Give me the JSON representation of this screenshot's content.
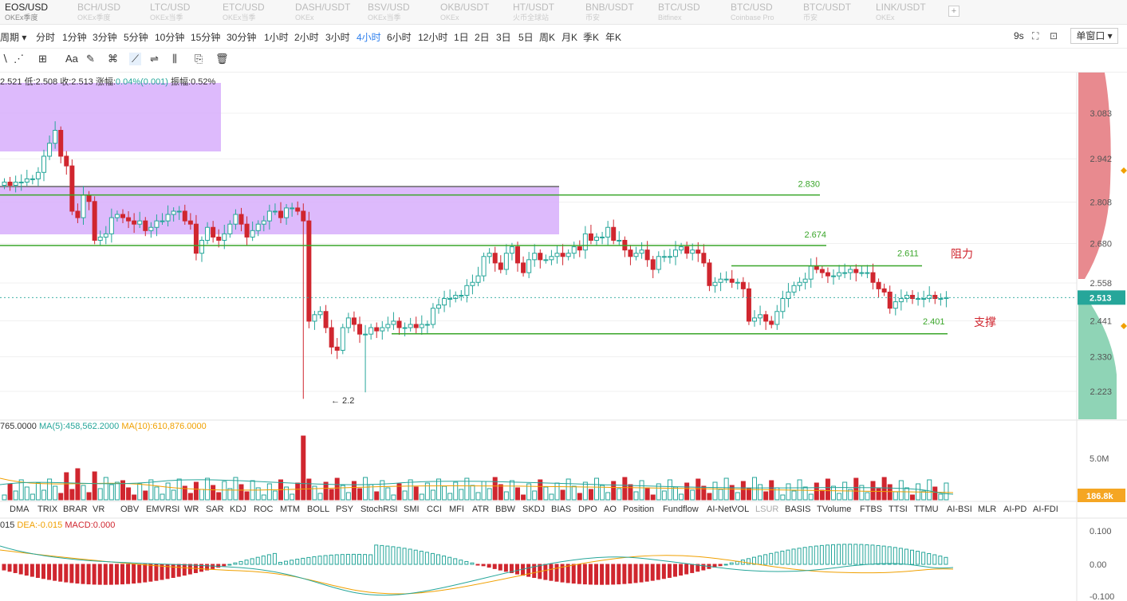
{
  "ticker_tabs": [
    {
      "symbol": "EOS/USD",
      "source": "OKEx季度",
      "active": true
    },
    {
      "symbol": "BCH/USD",
      "source": "OKEx季度",
      "active": false
    },
    {
      "symbol": "LTC/USD",
      "source": "OKEx当季",
      "active": false
    },
    {
      "symbol": "ETC/USD",
      "source": "OKEx当季",
      "active": false
    },
    {
      "symbol": "DASH/USDT",
      "source": "OKEx",
      "active": false
    },
    {
      "symbol": "BSV/USD",
      "source": "OKEx当季",
      "active": false
    },
    {
      "symbol": "OKB/USDT",
      "source": "OKEx",
      "active": false
    },
    {
      "symbol": "HT/USDT",
      "source": "火币全球站",
      "active": false
    },
    {
      "symbol": "BNB/USDT",
      "source": "币安",
      "active": false
    },
    {
      "symbol": "BTC/USD",
      "source": "Bitfinex",
      "active": false
    },
    {
      "symbol": "BTC/USD",
      "source": "Coinbase Pro",
      "active": false
    },
    {
      "symbol": "BTC/USDT",
      "source": "币安",
      "active": false
    },
    {
      "symbol": "LINK/USDT",
      "source": "OKEx",
      "active": false
    }
  ],
  "add_tab_icon": "plus-icon",
  "periods": [
    "周期",
    "分时",
    "1分钟",
    "3分钟",
    "5分钟",
    "10分钟",
    "15分钟",
    "30分钟",
    "1小时",
    "2小时",
    "3小时",
    "4小时",
    "6小时",
    "12小时",
    "1日",
    "2日",
    "3日",
    "5日",
    "周K",
    "月K",
    "季K",
    "年K"
  ],
  "active_period": "4小时",
  "header_right": {
    "refresh": "9s",
    "window_mode": "单窗口"
  },
  "tools": [
    "line-tool-icon",
    "fib-tool-icon",
    "crosshair-icon",
    "Aa",
    "brush-icon",
    "magnet-icon",
    "ruler-icon",
    "measure-icon",
    "candle-icon",
    "copy-icon",
    "trash-icon"
  ],
  "ohlc": {
    "text": "2.521 低:2.508 收:2.513 涨幅:",
    "change": "0.04%(0.001)",
    "amp": "振幅:0.52%"
  },
  "price_axis": [
    "3.083",
    "2.942",
    "2.808",
    "2.680",
    "2.558",
    "2.441",
    "2.330",
    "2.223"
  ],
  "current_price": "2.513",
  "levels": [
    {
      "value": "2.830",
      "label": ""
    },
    {
      "value": "2.674",
      "label": ""
    },
    {
      "value": "2.611",
      "label": "阻力"
    },
    {
      "value": "2.401",
      "label": "支撑"
    }
  ],
  "low_marker": "← 2.2",
  "volume": {
    "legend_vol": "765.0000",
    "ma5": "MA(5):458,562.2000",
    "ma10": "MA(10):610,876.0000",
    "axis_label": "5.0M",
    "current": "186.8k"
  },
  "indicators": [
    "DMA",
    "TRIX",
    "BRAR",
    "VR",
    "OBV",
    "EMV",
    "RSI",
    "WR",
    "SAR",
    "KDJ",
    "ROC",
    "MTM",
    "BOLL",
    "PSY",
    "StochRSI",
    "SMI",
    "CCI",
    "MFI",
    "ATR",
    "BBW",
    "SKDJ",
    "BIAS",
    "DPO",
    "AO",
    "Position",
    "Fundflow",
    "AI-NetVOL",
    "LSUR",
    "BASIS",
    "TVolume",
    "FTBS",
    "TTSI",
    "TTMU",
    "AI-BSI",
    "MLR",
    "AI-PD",
    "AI-FDI"
  ],
  "macd": {
    "dif": "015",
    "dea": "DEA:-0.015",
    "macd": "MACD:0.000",
    "axis": [
      "0.100",
      "0.00",
      "-0.100"
    ]
  },
  "colors": {
    "up": "#26a69a",
    "down": "#d0262f",
    "accent": "#2f80ed",
    "zone": "#d7aefb",
    "level": "#3aa62a"
  }
}
